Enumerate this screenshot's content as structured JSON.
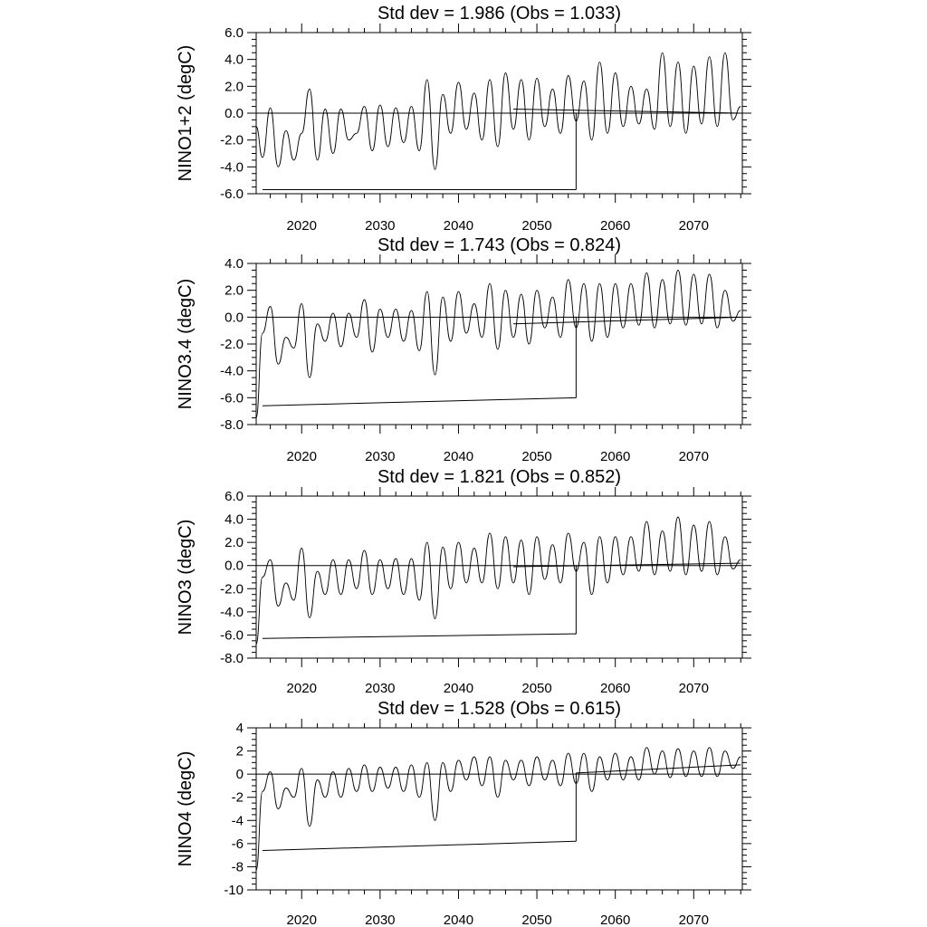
{
  "figure": {
    "background": "#ffffff",
    "line_color": "#000000"
  },
  "chart_data": [
    {
      "type": "line",
      "title": "Std dev = 1.986 (Obs = 1.033)",
      "ylabel": "NINO1+2 (degC)",
      "xlim": [
        2014.2,
        2076.2
      ],
      "ylim": [
        -6,
        6
      ],
      "xticks": [
        2020,
        2030,
        2040,
        2050,
        2060,
        2070
      ],
      "xtick_labels": [
        "2020",
        "2030",
        "2040",
        "2050",
        "2060",
        "2070"
      ],
      "yticks": [
        -6,
        -4,
        -2,
        0,
        2,
        4,
        6
      ],
      "ytick_labels": [
        "-6.0",
        "-4.0",
        "-2.0",
        "0.0",
        "2.0",
        "4.0",
        "6.0"
      ],
      "grid": false,
      "zero_line": 0,
      "series": [
        {
          "x": [
            2014.2,
            2015,
            2016,
            2017,
            2018,
            2019,
            2020,
            2021,
            2022,
            2023,
            2024,
            2025,
            2026,
            2027,
            2028,
            2029,
            2030,
            2031,
            2032,
            2033,
            2034,
            2035,
            2036,
            2037,
            2038,
            2039,
            2040,
            2041,
            2042,
            2043,
            2044,
            2045,
            2046,
            2047,
            2048,
            2049,
            2050,
            2051,
            2052,
            2053,
            2054,
            2055,
            2056,
            2057,
            2058,
            2059,
            2060,
            2061,
            2062,
            2063,
            2064,
            2065,
            2066,
            2067,
            2068,
            2069,
            2070,
            2071,
            2072,
            2073,
            2074,
            2075,
            2076
          ],
          "y": [
            -1.0,
            -3.3,
            0.4,
            -4.0,
            -1.3,
            -3.5,
            -1.5,
            1.8,
            -3.5,
            0.3,
            -3.0,
            0.3,
            -2.0,
            -1.5,
            0.5,
            -2.8,
            0.6,
            -2.5,
            0.4,
            -2.2,
            0.5,
            -2.8,
            2.5,
            -4.2,
            1.4,
            -1.5,
            2.3,
            -1.2,
            1.5,
            -2.0,
            2.5,
            -2.5,
            3.0,
            -1.2,
            2.5,
            -2.0,
            2.6,
            -1.0,
            1.8,
            -1.5,
            2.8,
            -0.6,
            2.4,
            -2.0,
            3.8,
            -1.5,
            3.0,
            -1.0,
            2.0,
            -0.8,
            1.8,
            -1.2,
            4.5,
            -1.0,
            3.8,
            -1.5,
            3.5,
            -0.8,
            4.2,
            -1.0,
            4.5,
            -0.5,
            0.5
          ]
        }
      ],
      "trend": [
        {
          "x": [
            2015,
            2055
          ],
          "y": [
            -5.7,
            -5.7
          ]
        },
        {
          "x": [
            2047,
            2076
          ],
          "y": [
            0.3,
            0.0
          ]
        }
      ],
      "drop": {
        "x": 2055,
        "y": [
          -5.7,
          0.0
        ]
      }
    },
    {
      "type": "line",
      "title": "Std dev = 1.743 (Obs = 0.824)",
      "ylabel": "NINO3.4 (degC)",
      "xlim": [
        2014.2,
        2076.2
      ],
      "ylim": [
        -8,
        4
      ],
      "xticks": [
        2020,
        2030,
        2040,
        2050,
        2060,
        2070
      ],
      "xtick_labels": [
        "2020",
        "2030",
        "2040",
        "2050",
        "2060",
        "2070"
      ],
      "yticks": [
        -8,
        -6,
        -4,
        -2,
        0,
        2,
        4
      ],
      "ytick_labels": [
        "-8.0",
        "-6.0",
        "-4.0",
        "-2.0",
        "0.0",
        "2.0",
        "4.0"
      ],
      "grid": false,
      "zero_line": 0,
      "series": [
        {
          "x": [
            2014.2,
            2015,
            2016,
            2017,
            2018,
            2019,
            2020,
            2021,
            2022,
            2023,
            2024,
            2025,
            2026,
            2027,
            2028,
            2029,
            2030,
            2031,
            2032,
            2033,
            2034,
            2035,
            2036,
            2037,
            2038,
            2039,
            2040,
            2041,
            2042,
            2043,
            2044,
            2045,
            2046,
            2047,
            2048,
            2049,
            2050,
            2051,
            2052,
            2053,
            2054,
            2055,
            2056,
            2057,
            2058,
            2059,
            2060,
            2061,
            2062,
            2063,
            2064,
            2065,
            2066,
            2067,
            2068,
            2069,
            2070,
            2071,
            2072,
            2073,
            2074,
            2075,
            2076
          ],
          "y": [
            -7.5,
            -1.2,
            0.8,
            -3.5,
            -1.5,
            -2.3,
            1.0,
            -4.5,
            -0.5,
            -1.8,
            0.3,
            -2.2,
            0.3,
            -1.5,
            1.3,
            -2.6,
            0.6,
            -1.5,
            0.6,
            -1.8,
            0.5,
            -2.5,
            1.9,
            -4.3,
            1.5,
            -1.8,
            1.9,
            -1.2,
            1.0,
            -1.5,
            2.5,
            -2.4,
            2.0,
            -1.5,
            1.7,
            -2.0,
            2.0,
            -0.8,
            1.5,
            -1.5,
            2.8,
            -0.8,
            2.5,
            -1.8,
            2.5,
            -1.5,
            2.5,
            -0.8,
            2.5,
            -0.6,
            3.3,
            -0.8,
            2.8,
            -0.5,
            3.5,
            -0.6,
            3.2,
            -0.5,
            3.2,
            -0.8,
            2.0,
            -0.3,
            0.5
          ]
        }
      ],
      "trend": [
        {
          "x": [
            2015,
            2055
          ],
          "y": [
            -6.6,
            -6.0
          ]
        },
        {
          "x": [
            2047,
            2076
          ],
          "y": [
            -0.5,
            0.0
          ]
        }
      ],
      "drop": {
        "x": 2055,
        "y": [
          -6.0,
          0.0
        ]
      }
    },
    {
      "type": "line",
      "title": "Std dev = 1.821 (Obs = 0.852)",
      "ylabel": "NINO3 (degC)",
      "xlim": [
        2014.2,
        2076.2
      ],
      "ylim": [
        -8,
        6
      ],
      "xticks": [
        2020,
        2030,
        2040,
        2050,
        2060,
        2070
      ],
      "xtick_labels": [
        "2020",
        "2030",
        "2040",
        "2050",
        "2060",
        "2070"
      ],
      "yticks": [
        -8,
        -6,
        -4,
        -2,
        0,
        2,
        4,
        6
      ],
      "ytick_labels": [
        "-8.0",
        "-6.0",
        "-4.0",
        "-2.0",
        "0.0",
        "2.0",
        "4.0",
        "6.0"
      ],
      "grid": false,
      "zero_line": 0,
      "series": [
        {
          "x": [
            2014.2,
            2015,
            2016,
            2017,
            2018,
            2019,
            2020,
            2021,
            2022,
            2023,
            2024,
            2025,
            2026,
            2027,
            2028,
            2029,
            2030,
            2031,
            2032,
            2033,
            2034,
            2035,
            2036,
            2037,
            2038,
            2039,
            2040,
            2041,
            2042,
            2043,
            2044,
            2045,
            2046,
            2047,
            2048,
            2049,
            2050,
            2051,
            2052,
            2053,
            2054,
            2055,
            2056,
            2057,
            2058,
            2059,
            2060,
            2061,
            2062,
            2063,
            2064,
            2065,
            2066,
            2067,
            2068,
            2069,
            2070,
            2071,
            2072,
            2073,
            2074,
            2075,
            2076
          ],
          "y": [
            -6.8,
            -1.0,
            0.5,
            -3.5,
            -1.5,
            -3.0,
            1.5,
            -4.5,
            -0.5,
            -2.5,
            0.5,
            -2.5,
            0.5,
            -2.0,
            1.3,
            -2.5,
            0.5,
            -2.0,
            0.6,
            -2.5,
            0.6,
            -3.0,
            2.0,
            -4.6,
            1.6,
            -2.0,
            2.0,
            -1.5,
            1.5,
            -1.5,
            2.8,
            -2.0,
            2.5,
            -1.5,
            2.2,
            -2.5,
            2.5,
            -1.2,
            1.8,
            -1.5,
            2.8,
            -0.5,
            2.0,
            -2.5,
            2.5,
            -1.5,
            2.5,
            -0.8,
            2.5,
            -0.5,
            3.8,
            -0.8,
            3.0,
            -0.5,
            4.2,
            -0.8,
            3.5,
            -0.5,
            3.8,
            -0.8,
            2.5,
            -0.3,
            0.5
          ]
        }
      ],
      "trend": [
        {
          "x": [
            2015,
            2055
          ],
          "y": [
            -6.3,
            -5.9
          ]
        },
        {
          "x": [
            2047,
            2076
          ],
          "y": [
            -0.1,
            0.2
          ]
        }
      ],
      "drop": {
        "x": 2055,
        "y": [
          -5.9,
          0.0
        ]
      }
    },
    {
      "type": "line",
      "title": "Std dev = 1.528 (Obs = 0.615)",
      "ylabel": "NINO4 (degC)",
      "xlim": [
        2014.2,
        2076.2
      ],
      "ylim": [
        -10,
        4
      ],
      "xticks": [
        2020,
        2030,
        2040,
        2050,
        2060,
        2070
      ],
      "xtick_labels": [
        "2020",
        "2030",
        "2040",
        "2050",
        "2060",
        "2070"
      ],
      "yticks": [
        -10,
        -8,
        -6,
        -4,
        -2,
        0,
        2,
        4
      ],
      "ytick_labels": [
        "-10",
        "-8",
        "-6",
        "-4",
        "-2",
        "0",
        "2",
        "4"
      ],
      "grid": false,
      "zero_line": 0,
      "series": [
        {
          "x": [
            2014.2,
            2015,
            2016,
            2017,
            2018,
            2019,
            2020,
            2021,
            2022,
            2023,
            2024,
            2025,
            2026,
            2027,
            2028,
            2029,
            2030,
            2031,
            2032,
            2033,
            2034,
            2035,
            2036,
            2037,
            2038,
            2039,
            2040,
            2041,
            2042,
            2043,
            2044,
            2045,
            2046,
            2047,
            2048,
            2049,
            2050,
            2051,
            2052,
            2053,
            2054,
            2055,
            2056,
            2057,
            2058,
            2059,
            2060,
            2061,
            2062,
            2063,
            2064,
            2065,
            2066,
            2067,
            2068,
            2069,
            2070,
            2071,
            2072,
            2073,
            2074,
            2075,
            2076
          ],
          "y": [
            -8.3,
            -1.5,
            0.2,
            -3.0,
            -1.2,
            -2.0,
            0.5,
            -4.5,
            -0.5,
            -2.0,
            0.2,
            -2.0,
            0.5,
            -1.5,
            0.8,
            -1.5,
            0.6,
            -1.2,
            0.6,
            -1.5,
            0.8,
            -2.0,
            1.0,
            -4.0,
            1.0,
            -1.5,
            1.2,
            -0.5,
            1.5,
            -1.0,
            1.5,
            -2.0,
            1.2,
            -0.5,
            1.2,
            -1.0,
            1.5,
            -0.5,
            1.2,
            -1.0,
            1.8,
            -0.8,
            1.8,
            -1.5,
            1.5,
            -0.5,
            1.8,
            -0.5,
            1.5,
            -0.5,
            2.3,
            0.0,
            2.0,
            -0.3,
            2.2,
            -0.2,
            2.0,
            -0.2,
            2.3,
            -0.2,
            2.0,
            0.5,
            1.5
          ]
        }
      ],
      "trend": [
        {
          "x": [
            2015,
            2055
          ],
          "y": [
            -6.6,
            -5.8
          ]
        },
        {
          "x": [
            2055,
            2076
          ],
          "y": [
            0.1,
            0.8
          ]
        }
      ],
      "drop": {
        "x": 2055,
        "y": [
          -5.8,
          0.1
        ]
      }
    }
  ]
}
